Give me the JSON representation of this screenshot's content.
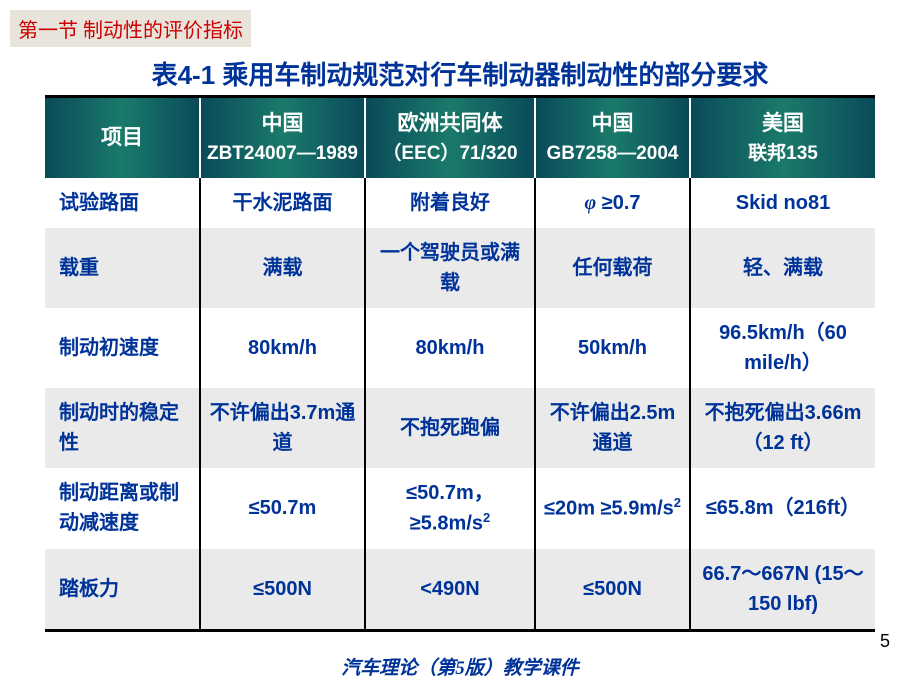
{
  "section_label": "第一节 制动性的评价指标",
  "table_title": "表4-1 乘用车制动规范对行车制动器制动性的部分要求",
  "headers": {
    "c1": "项目",
    "c2_main": "中国",
    "c2_sub": "ZBT24007—1989",
    "c3_main": "欧洲共同体",
    "c3_sub": "（EEC）71/320",
    "c4_main": "中国",
    "c4_sub": "GB7258—2004",
    "c5_main": "美国",
    "c5_sub": "联邦135"
  },
  "rows": [
    {
      "label": "试验路面",
      "c2": "干水泥路面",
      "c3": "附着良好",
      "c4_phi": "φ",
      "c4_rest": " ≥0.7",
      "c5": "Skid no81"
    },
    {
      "label": "载重",
      "c2": "满载",
      "c3": "一个驾驶员或满载",
      "c4": "任何载荷",
      "c5": "轻、满载"
    },
    {
      "label": "制动初速度",
      "c2": "80km/h",
      "c3": "80km/h",
      "c4": "50km/h",
      "c5": "96.5km/h（60 mile/h）"
    },
    {
      "label": "制动时的稳定性",
      "c2": "不许偏出3.7m通道",
      "c3": "不抱死跑偏",
      "c4": "不许偏出2.5m通道",
      "c5": "不抱死偏出3.66m（12 ft）"
    },
    {
      "label": "制动距离或制动减速度",
      "c2": "≤50.7m",
      "c3_pre": "≤50.7m，≥5.8m/s",
      "c3_sup": "2",
      "c4_pre": "≤20m ≥5.9m/s",
      "c4_sup": "2",
      "c5": "≤65.8m（216ft）"
    },
    {
      "label": "踏板力",
      "c2": "≤500N",
      "c3": "<490N",
      "c4": "≤500N",
      "c5": "66.7～667N (15～150 lbf)"
    }
  ],
  "page_number": "5",
  "footer": "汽车理论（第5版）教学课件",
  "colors": {
    "title_color": "#003399",
    "section_bg": "#e8e4dc",
    "section_text": "#cc0000",
    "header_bg_start": "#0a4a5a",
    "header_bg_mid": "#1a7a6a",
    "cell_text": "#003399",
    "alt_row_bg": "#eaeaea"
  }
}
